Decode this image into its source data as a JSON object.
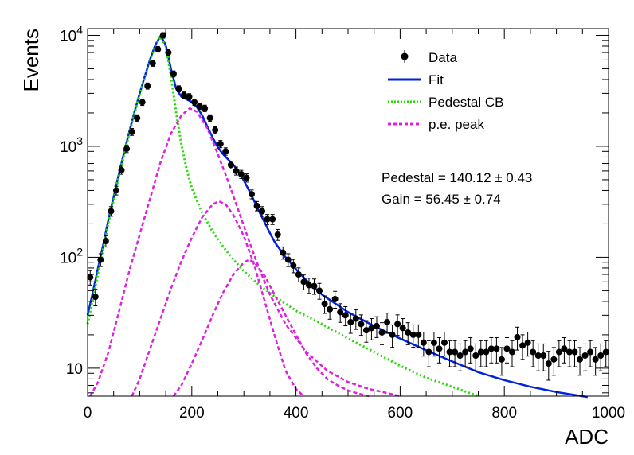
{
  "chart_data": {
    "type": "scatter",
    "xlabel": "ADC",
    "ylabel": "Events",
    "xlim": [
      0,
      1000
    ],
    "ylim": [
      5.6,
      11500
    ],
    "yscale": "log",
    "x_ticks": [
      "0",
      "200",
      "400",
      "600",
      "800",
      "1000"
    ],
    "y_ticks": [
      {
        "base": "10",
        "exp": "",
        "value": 10
      },
      {
        "base": "10",
        "exp": "2",
        "value": 100
      },
      {
        "base": "10",
        "exp": "3",
        "value": 1000
      },
      {
        "base": "10",
        "exp": "4",
        "value": 10000
      }
    ],
    "legend_position": "top-right",
    "legend": [
      {
        "label": "Data",
        "style": "marker",
        "color": "#000000"
      },
      {
        "label": "Fit",
        "style": "solid",
        "color": "#0022dd"
      },
      {
        "label": "Pedestal CB",
        "style": "dotted",
        "color": "#22dd00"
      },
      {
        "label": "p.e. peak",
        "style": "dashed",
        "color": "#dd22dd"
      }
    ],
    "annotations": [
      "Pedestal = 140.12 ± 0.43",
      "Gain = 56.45 ± 0.74"
    ],
    "fit_params": {
      "pedestal": 140.12,
      "pedestal_err": 0.43,
      "gain": 56.45,
      "gain_err": 0.74
    },
    "series": [
      {
        "name": "Data",
        "x": [
          5,
          15,
          25,
          35,
          45,
          55,
          65,
          75,
          85,
          95,
          105,
          115,
          125,
          135,
          145,
          155,
          165,
          175,
          185,
          195,
          205,
          215,
          225,
          235,
          245,
          255,
          265,
          275,
          285,
          295,
          305,
          315,
          325,
          335,
          345,
          355,
          365,
          375,
          385,
          395,
          405,
          415,
          425,
          435,
          445,
          455,
          465,
          475,
          485,
          495,
          505,
          515,
          525,
          535,
          545,
          555,
          565,
          575,
          585,
          595,
          605,
          615,
          625,
          635,
          645,
          655,
          665,
          675,
          685,
          695,
          705,
          715,
          725,
          735,
          745,
          755,
          765,
          775,
          785,
          795,
          805,
          815,
          825,
          835,
          845,
          855,
          865,
          875,
          885,
          895,
          905,
          915,
          925,
          935,
          945,
          955,
          965,
          975,
          985,
          995
        ],
        "y": [
          66,
          44,
          95,
          140,
          260,
          400,
          610,
          950,
          1350,
          1800,
          2500,
          3500,
          5600,
          7500,
          10000,
          7000,
          4500,
          3300,
          2900,
          2800,
          2500,
          2300,
          2200,
          1800,
          1400,
          1050,
          900,
          680,
          600,
          560,
          520,
          370,
          290,
          260,
          220,
          220,
          160,
          110,
          95,
          84,
          70,
          60,
          56,
          55,
          50,
          38,
          34,
          42,
          32,
          30,
          26,
          28,
          25,
          22,
          23,
          24,
          21,
          26,
          20,
          25,
          23,
          21,
          20,
          20,
          17,
          14,
          17,
          15,
          17,
          14,
          14,
          13,
          14,
          15,
          13,
          14,
          14,
          15,
          15,
          12,
          15,
          14,
          19,
          16,
          17,
          14,
          13,
          13,
          11,
          12,
          14,
          15,
          14,
          14,
          12,
          13,
          14,
          12,
          13,
          14
        ]
      },
      {
        "name": "Fit",
        "x": [
          0,
          10,
          20,
          30,
          40,
          50,
          60,
          70,
          80,
          90,
          100,
          110,
          120,
          130,
          140,
          150,
          160,
          170,
          180,
          190,
          200,
          210,
          220,
          230,
          240,
          250,
          260,
          270,
          280,
          290,
          300,
          310,
          320,
          330,
          340,
          350,
          360,
          380,
          400,
          420,
          450,
          500,
          550,
          600,
          650,
          700,
          750,
          800,
          850,
          900,
          960
        ],
        "y": [
          30,
          48,
          80,
          130,
          220,
          350,
          560,
          880,
          1350,
          2050,
          3000,
          4300,
          6100,
          8200,
          9900,
          8200,
          5000,
          3300,
          2800,
          2650,
          2500,
          2250,
          1900,
          1500,
          1200,
          980,
          850,
          760,
          680,
          590,
          490,
          400,
          320,
          255,
          205,
          165,
          135,
          100,
          78,
          62,
          46,
          32,
          24,
          18.5,
          14.5,
          11.5,
          9.2,
          7.8,
          6.8,
          6.1,
          5.5
        ]
      },
      {
        "name": "Pedestal CB",
        "x": [
          0,
          10,
          20,
          30,
          40,
          50,
          60,
          70,
          80,
          90,
          100,
          110,
          120,
          130,
          140,
          150,
          160,
          170,
          180,
          190,
          200,
          220,
          240,
          260,
          280,
          300,
          330,
          360,
          400,
          450,
          500,
          550,
          600,
          650,
          700,
          750
        ],
        "y": [
          25,
          42,
          72,
          120,
          205,
          330,
          530,
          840,
          1300,
          2000,
          2900,
          4200,
          6000,
          8100,
          9700,
          8000,
          4300,
          2000,
          1050,
          620,
          420,
          250,
          170,
          125,
          95,
          75,
          56,
          44,
          33,
          25,
          18.5,
          14,
          10.5,
          8.2,
          6.8,
          5.6
        ]
      },
      {
        "name": "p.e. peak",
        "x": [
          5,
          20,
          40,
          60,
          80,
          100,
          120,
          140,
          160,
          180,
          196,
          210,
          230,
          250,
          270,
          290,
          310,
          330,
          350,
          380,
          420,
          460,
          500,
          540,
          580,
          600
        ],
        "y": [
          5.6,
          7.5,
          14,
          32,
          75,
          160,
          340,
          720,
          1300,
          1900,
          2200,
          2050,
          1450,
          850,
          480,
          260,
          140,
          78,
          46,
          25,
          14,
          9.5,
          7.5,
          6.5,
          5.9,
          5.6
        ]
      },
      {
        "name": "p.e. peak",
        "x": [
          85,
          100,
          120,
          140,
          160,
          180,
          200,
          220,
          240,
          252,
          265,
          280,
          300,
          320,
          340,
          360,
          380,
          400,
          415
        ],
        "y": [
          5.6,
          8,
          15,
          28,
          52,
          92,
          150,
          230,
          300,
          320,
          300,
          240,
          155,
          85,
          40,
          19,
          9.5,
          6.5,
          5.6
        ]
      },
      {
        "name": "p.e. peak",
        "x": [
          165,
          180,
          200,
          220,
          240,
          260,
          280,
          300,
          310,
          320,
          340,
          360,
          380,
          400,
          420,
          440,
          460,
          480,
          500,
          520,
          540
        ],
        "y": [
          5.6,
          7,
          11,
          18,
          30,
          48,
          70,
          90,
          95,
          90,
          68,
          45,
          30,
          20,
          13.5,
          10,
          8,
          7,
          6.3,
          5.9,
          5.6
        ]
      }
    ]
  }
}
